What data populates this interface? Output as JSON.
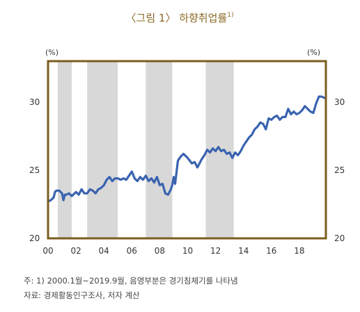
{
  "title": "〈그림 1〉 하향취업률",
  "title_sup": "1)",
  "notes": {
    "note": "주: 1) 2000.1월~2019.9월, 음영부분은 경기침체기를 나타냄",
    "source": "자료: 경제활동인구조사, 저자 계산"
  },
  "chart_data": {
    "type": "line",
    "unit_left": "(%)",
    "unit_right": "(%)",
    "ylim": [
      20,
      33
    ],
    "y_ticks": [
      20,
      25,
      30
    ],
    "xlim": [
      2000.0,
      2019.9
    ],
    "x_ticks": [
      2000,
      2002,
      2004,
      2006,
      2008,
      2010,
      2012,
      2014,
      2016,
      2018
    ],
    "x_tick_labels": [
      "00",
      "02",
      "04",
      "06",
      "08",
      "10",
      "12",
      "14",
      "16",
      "18"
    ],
    "recessions": [
      [
        2000.7,
        2001.7
      ],
      [
        2002.8,
        2005.0
      ],
      [
        2007.0,
        2008.9
      ],
      [
        2011.3,
        2013.3
      ]
    ],
    "line_color": "#3a63b0",
    "shade_color": "#d8d8d8",
    "frame_color": "#7a5c1e",
    "series": [
      {
        "x": [
          2000.0,
          2000.2,
          2000.4,
          2000.5,
          2000.6,
          2000.8,
          2001.0,
          2001.1,
          2001.2,
          2001.3,
          2001.5,
          2001.7,
          2001.9,
          2002.0,
          2002.2,
          2002.4,
          2002.6,
          2002.8,
          2003.0,
          2003.2,
          2003.4,
          2003.6,
          2003.8,
          2004.0,
          2004.2,
          2004.4,
          2004.6,
          2004.8,
          2005.0,
          2005.2,
          2005.4,
          2005.6,
          2005.8,
          2006.0,
          2006.2,
          2006.4,
          2006.6,
          2006.8,
          2007.0,
          2007.2,
          2007.4,
          2007.6,
          2007.8,
          2008.0,
          2008.2,
          2008.4,
          2008.6,
          2008.8,
          2008.9,
          2009.0,
          2009.1,
          2009.3,
          2009.5,
          2009.7,
          2010.0,
          2010.3,
          2010.5,
          2010.7,
          2011.0,
          2011.2,
          2011.4,
          2011.6,
          2011.8,
          2012.0,
          2012.2,
          2012.4,
          2012.6,
          2012.8,
          2013.0,
          2013.2,
          2013.4,
          2013.6,
          2013.8,
          2014.0,
          2014.2,
          2014.4,
          2014.6,
          2014.8,
          2015.0,
          2015.2,
          2015.4,
          2015.6,
          2015.8,
          2016.0,
          2016.2,
          2016.4,
          2016.6,
          2016.8,
          2017.0,
          2017.2,
          2017.4,
          2017.6,
          2017.8,
          2018.0,
          2018.2,
          2018.4,
          2018.6,
          2018.8,
          2019.0,
          2019.2,
          2019.4,
          2019.6,
          2019.8
        ],
        "values": [
          22.7,
          22.8,
          23.0,
          23.4,
          23.5,
          23.5,
          23.3,
          22.8,
          23.2,
          23.2,
          23.3,
          23.1,
          23.3,
          23.4,
          23.2,
          23.6,
          23.3,
          23.3,
          23.6,
          23.5,
          23.3,
          23.6,
          23.7,
          23.9,
          24.3,
          24.5,
          24.2,
          24.4,
          24.4,
          24.3,
          24.4,
          24.3,
          24.6,
          24.9,
          24.4,
          24.2,
          24.5,
          24.3,
          24.6,
          24.2,
          24.4,
          24.1,
          24.5,
          23.9,
          24.0,
          23.3,
          23.2,
          23.6,
          23.9,
          24.5,
          24.0,
          25.7,
          26.0,
          26.2,
          25.9,
          25.5,
          25.6,
          25.2,
          25.8,
          26.1,
          26.5,
          26.3,
          26.6,
          26.4,
          26.7,
          26.4,
          26.5,
          26.2,
          26.3,
          25.9,
          26.3,
          26.1,
          26.4,
          26.8,
          27.1,
          27.4,
          27.6,
          28.0,
          28.2,
          28.5,
          28.4,
          28.0,
          28.8,
          28.7,
          28.9,
          29.0,
          28.7,
          28.9,
          28.9,
          29.5,
          29.1,
          29.3,
          29.1,
          29.2,
          29.4,
          29.7,
          29.5,
          29.3,
          29.2,
          29.9,
          30.4,
          30.4,
          30.3
        ]
      }
    ]
  }
}
